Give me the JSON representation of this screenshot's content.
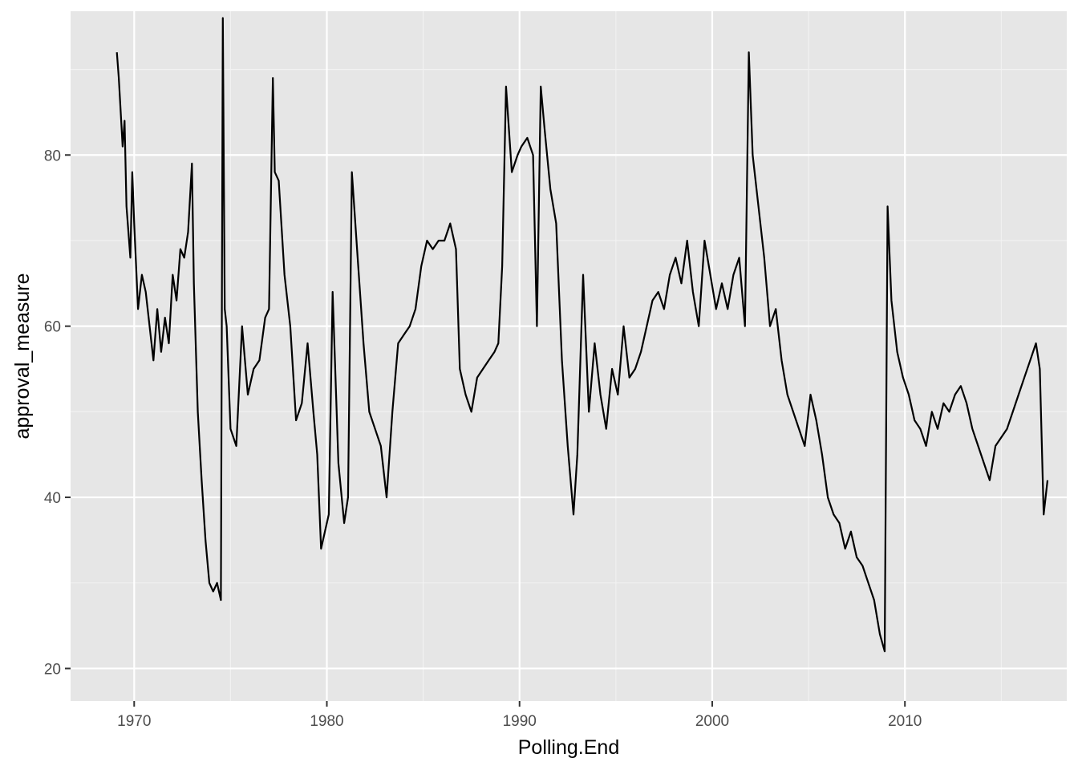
{
  "chart_data": {
    "type": "line",
    "title": "",
    "xlabel": "Polling.End",
    "ylabel": "approval_measure",
    "xlim": [
      1966.7,
      2018.4
    ],
    "ylim": [
      16.2,
      96.8
    ],
    "x_ticks": [
      1970,
      1980,
      1990,
      2000,
      2010
    ],
    "x_tick_labels": [
      "1970",
      "1980",
      "1990",
      "2000",
      "2010"
    ],
    "y_ticks": [
      20,
      40,
      60,
      80
    ],
    "y_tick_labels": [
      "20",
      "40",
      "60",
      "80"
    ],
    "grid": true,
    "legend": "none",
    "line_color": "#000000",
    "panel_color": "#e6e6e6",
    "series": [
      {
        "x": [
          1969.1,
          1969.2,
          1969.4,
          1969.5,
          1969.6,
          1969.8,
          1969.9,
          1970.0,
          1970.2,
          1970.4,
          1970.6,
          1970.8,
          1971.0,
          1971.2,
          1971.4,
          1971.6,
          1971.8,
          1972.0,
          1972.2,
          1972.4,
          1972.6,
          1972.8,
          1973.0,
          1973.1,
          1973.3,
          1973.5,
          1973.7,
          1973.9,
          1974.1,
          1974.3,
          1974.5,
          1974.6,
          1974.7,
          1974.8,
          1975.0,
          1975.3,
          1975.6,
          1975.9,
          1976.2,
          1976.5,
          1976.8,
          1977.0,
          1977.2,
          1977.3,
          1977.5,
          1977.8,
          1978.1,
          1978.4,
          1978.7,
          1979.0,
          1979.3,
          1979.5,
          1979.7,
          1979.9,
          1980.1,
          1980.3,
          1980.6,
          1980.9,
          1981.1,
          1981.3,
          1981.6,
          1981.9,
          1982.2,
          1982.5,
          1982.8,
          1983.1,
          1983.4,
          1983.7,
          1984.0,
          1984.3,
          1984.6,
          1984.9,
          1985.2,
          1985.5,
          1985.8,
          1986.1,
          1986.4,
          1986.7,
          1986.9,
          1987.2,
          1987.5,
          1987.8,
          1988.1,
          1988.4,
          1988.7,
          1988.9,
          1989.1,
          1989.3,
          1989.6,
          1989.9,
          1990.1,
          1990.4,
          1990.7,
          1990.9,
          1991.1,
          1991.3,
          1991.6,
          1991.9,
          1992.2,
          1992.5,
          1992.8,
          1993.0,
          1993.3,
          1993.6,
          1993.9,
          1994.2,
          1994.5,
          1994.8,
          1995.1,
          1995.4,
          1995.7,
          1996.0,
          1996.3,
          1996.6,
          1996.9,
          1997.2,
          1997.5,
          1997.8,
          1998.1,
          1998.4,
          1998.7,
          1999.0,
          1999.3,
          1999.6,
          1999.9,
          2000.2,
          2000.5,
          2000.8,
          2001.1,
          2001.4,
          2001.7,
          2001.9,
          2002.1,
          2002.4,
          2002.7,
          2003.0,
          2003.3,
          2003.6,
          2003.9,
          2004.2,
          2004.5,
          2004.8,
          2005.1,
          2005.4,
          2005.7,
          2006.0,
          2006.3,
          2006.6,
          2006.9,
          2007.2,
          2007.5,
          2007.8,
          2008.1,
          2008.4,
          2008.7,
          2008.95,
          2009.1,
          2009.3,
          2009.6,
          2009.9,
          2010.2,
          2010.5,
          2010.8,
          2011.1,
          2011.4,
          2011.7,
          2012.0,
          2012.3,
          2012.6,
          2012.9,
          2013.2,
          2013.5,
          2013.8,
          2014.1,
          2014.4,
          2014.7,
          2015.0,
          2015.3,
          2015.6,
          2015.9,
          2016.2,
          2016.5,
          2016.8,
          2017.0,
          2017.2,
          2017.4
        ],
        "y": [
          92,
          89,
          81,
          84,
          74,
          68,
          78,
          72,
          62,
          66,
          64,
          60,
          56,
          62,
          57,
          61,
          58,
          66,
          63,
          69,
          68,
          71,
          79,
          65,
          50,
          42,
          35,
          30,
          29,
          30,
          28,
          96,
          62,
          60,
          48,
          46,
          60,
          52,
          55,
          56,
          61,
          62,
          89,
          78,
          77,
          66,
          60,
          49,
          51,
          58,
          50,
          45,
          34,
          36,
          38,
          64,
          44,
          37,
          40,
          78,
          68,
          58,
          50,
          48,
          46,
          40,
          50,
          58,
          59,
          60,
          62,
          67,
          70,
          69,
          70,
          70,
          72,
          69,
          55,
          52,
          50,
          54,
          55,
          56,
          57,
          58,
          67,
          88,
          78,
          80,
          81,
          82,
          80,
          60,
          88,
          83,
          76,
          72,
          56,
          46,
          38,
          45,
          66,
          50,
          58,
          52,
          48,
          55,
          52,
          60,
          54,
          55,
          57,
          60,
          63,
          64,
          62,
          66,
          68,
          65,
          70,
          64,
          60,
          70,
          66,
          62,
          65,
          62,
          66,
          68,
          60,
          92,
          80,
          74,
          68,
          60,
          62,
          56,
          52,
          50,
          48,
          46,
          52,
          49,
          45,
          40,
          38,
          37,
          34,
          36,
          33,
          32,
          30,
          28,
          24,
          22,
          74,
          63,
          57,
          54,
          52,
          49,
          48,
          46,
          50,
          48,
          51,
          50,
          52,
          53,
          51,
          48,
          46,
          44,
          42,
          46,
          47,
          48,
          50,
          52,
          54,
          56,
          58,
          55,
          38,
          42
        ]
      }
    ]
  }
}
